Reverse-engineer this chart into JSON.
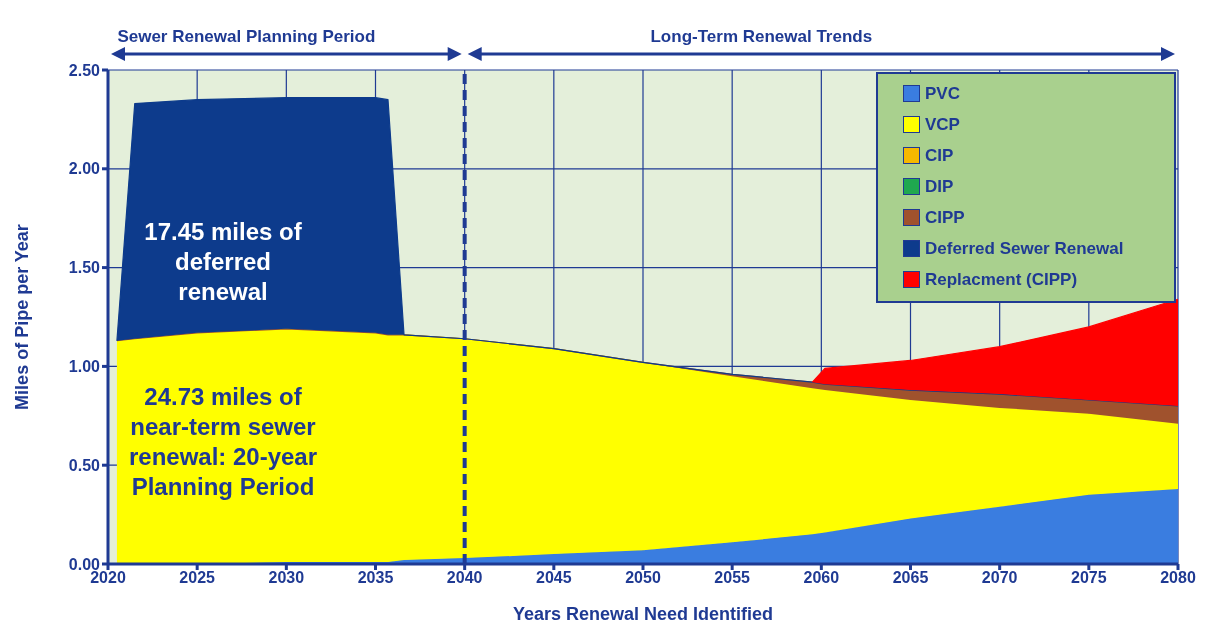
{
  "chart_data": {
    "type": "area",
    "stacked": true,
    "xlabel": "Years Renewal Need Identified",
    "ylabel": "Miles of Pipe per Year",
    "x": [
      2020.5,
      2021.5,
      2025,
      2030,
      2035,
      2035.7,
      2036.6,
      2040,
      2045,
      2050,
      2055,
      2059.5,
      2060.2,
      2065,
      2070,
      2075,
      2080
    ],
    "series": [
      {
        "name": "PVC",
        "color": "#3a7de0",
        "values": [
          0,
          0,
          0,
          0.01,
          0.01,
          0.01,
          0.02,
          0.03,
          0.05,
          0.07,
          0.11,
          0.15,
          0.16,
          0.23,
          0.29,
          0.35,
          0.38
        ]
      },
      {
        "name": "VCP",
        "color": "#ffff00",
        "values": [
          1.13,
          1.14,
          1.17,
          1.18,
          1.16,
          1.15,
          1.14,
          1.11,
          1.04,
          0.95,
          0.84,
          0.74,
          0.72,
          0.6,
          0.5,
          0.41,
          0.33
        ]
      },
      {
        "name": "CIP",
        "color": "#f5b800",
        "values": [
          null,
          null,
          null,
          null,
          null,
          null,
          null,
          null,
          null,
          null,
          null,
          null,
          null,
          null,
          null,
          null,
          null
        ]
      },
      {
        "name": "DIP",
        "color": "#1fa84f",
        "values": [
          null,
          null,
          null,
          null,
          null,
          null,
          null,
          null,
          null,
          null,
          null,
          null,
          null,
          null,
          null,
          null,
          null
        ]
      },
      {
        "name": "CIPP",
        "color": "#a0522d",
        "values": [
          0,
          0,
          0,
          0,
          0,
          0,
          0,
          0,
          0,
          0,
          0.01,
          0.03,
          0.03,
          0.05,
          0.07,
          0.07,
          0.09
        ]
      },
      {
        "name": "Deferred Sewer Renewal",
        "color": "#0d3b8c",
        "values": [
          0,
          1.19,
          1.18,
          1.17,
          1.19,
          1.19,
          0,
          0,
          0,
          0,
          0,
          0,
          0,
          0,
          0,
          0,
          0
        ]
      },
      {
        "name": "Replacment (CIPP)",
        "color": "#ff0000",
        "values": [
          null,
          null,
          null,
          null,
          null,
          null,
          null,
          null,
          null,
          null,
          null,
          0,
          0.08,
          0.15,
          0.24,
          0.37,
          0.54
        ]
      }
    ],
    "xlim": [
      2020,
      2080
    ],
    "xticks": [
      2020,
      2025,
      2030,
      2035,
      2040,
      2045,
      2050,
      2055,
      2060,
      2065,
      2070,
      2075,
      2080
    ],
    "ylim": [
      0,
      2.5
    ],
    "yticks": [
      {
        "value": 0,
        "label": "0.00"
      },
      {
        "value": 0.5,
        "label": "0.50"
      },
      {
        "value": 1,
        "label": "1.00"
      },
      {
        "value": 1.5,
        "label": "1.50"
      },
      {
        "value": 2,
        "label": "2.00"
      },
      {
        "value": 2.5,
        "label": "2.50"
      }
    ],
    "grid": true,
    "legend": "top right",
    "ref_lines": [
      {
        "axis": "x",
        "value": 2040,
        "line_style": "dashed",
        "color": "#1f3a93"
      }
    ],
    "annotations": [
      "Sewer Renewal Planning Period",
      "Long-Term Renewal Trends",
      "17.45 miles of deferred renewal",
      "24.73 miles of near-term sewer renewal: 20-year Planning Period"
    ]
  }
}
